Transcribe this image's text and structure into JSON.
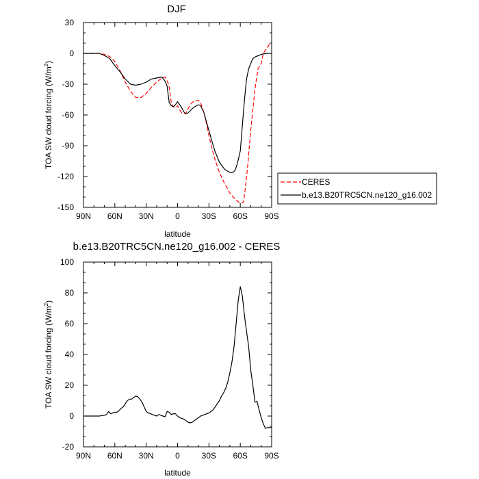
{
  "chart_data": [
    {
      "type": "line",
      "title": "DJF",
      "xlabel": "latitude",
      "ylabel": "TOA SW cloud forcing (W/m",
      "ylabel_sup": "2",
      "ylabel_close": ")",
      "xlim": [
        90,
        -90
      ],
      "ylim": [
        -150,
        30
      ],
      "xticks": [
        90,
        60,
        30,
        0,
        -30,
        -60,
        -90
      ],
      "xtick_labels": [
        "90N",
        "60N",
        "30N",
        "0",
        "30S",
        "60S",
        "90S"
      ],
      "yticks": [
        30,
        0,
        -30,
        -60,
        -90,
        -120,
        -150
      ],
      "ytick_labels": [
        "30",
        "0",
        "-30",
        "-60",
        "-90",
        "-120",
        "-150"
      ],
      "legend": {
        "placement": "right",
        "entries": [
          "CERES",
          "b.e13.B20TRC5CN.ne120_g16.002"
        ]
      },
      "series": [
        {
          "name": "CERES",
          "color": "#ff0000",
          "dash": true,
          "x": [
            90,
            80,
            75,
            70,
            65,
            60,
            55,
            50,
            45,
            40,
            35,
            30,
            25,
            20,
            15,
            12,
            10,
            8,
            6,
            4,
            2,
            0,
            -2,
            -4,
            -6,
            -8,
            -10,
            -12,
            -15,
            -18,
            -20,
            -22,
            -25,
            -28,
            -30,
            -33,
            -36,
            -40,
            -45,
            -50,
            -55,
            -60,
            -63,
            -65,
            -67,
            -70,
            -72,
            -74,
            -75,
            -77,
            -80,
            -82,
            -84,
            -86,
            -88,
            -90
          ],
          "y": [
            0,
            0,
            0,
            -1,
            -3,
            -8,
            -17,
            -28,
            -37,
            -43,
            -43,
            -39,
            -33,
            -28,
            -24,
            -23,
            -26,
            -33,
            -48,
            -52,
            -53,
            -51,
            -55,
            -58,
            -59,
            -58,
            -54,
            -50,
            -47,
            -46,
            -46,
            -48,
            -57,
            -70,
            -80,
            -93,
            -104,
            -116,
            -127,
            -136,
            -142,
            -146,
            -145,
            -130,
            -110,
            -75,
            -55,
            -35,
            -28,
            -15,
            -10,
            0,
            3,
            6,
            9,
            8
          ]
        },
        {
          "name": "b.e13.B20TRC5CN.ne120_g16.002",
          "color": "#000000",
          "dash": false,
          "x": [
            90,
            80,
            75,
            70,
            65,
            60,
            55,
            50,
            45,
            40,
            35,
            30,
            25,
            20,
            15,
            12,
            10,
            8,
            6,
            4,
            2,
            0,
            -2,
            -4,
            -6,
            -8,
            -10,
            -12,
            -15,
            -18,
            -20,
            -22,
            -25,
            -28,
            -30,
            -33,
            -36,
            -40,
            -45,
            -50,
            -53,
            -55,
            -57,
            -60,
            -62,
            -64,
            -66,
            -68,
            -70,
            -72,
            -75,
            -78,
            -80,
            -85,
            -90
          ],
          "y": [
            0,
            0,
            0,
            -2,
            -5,
            -12,
            -18,
            -25,
            -30,
            -31,
            -30,
            -28,
            -25,
            -24,
            -23,
            -27,
            -32,
            -48,
            -51,
            -52,
            -50,
            -47,
            -50,
            -53,
            -57,
            -59,
            -58,
            -56,
            -53,
            -51,
            -50,
            -51,
            -57,
            -68,
            -75,
            -86,
            -96,
            -106,
            -113,
            -116,
            -116,
            -114,
            -108,
            -95,
            -70,
            -45,
            -25,
            -15,
            -10,
            -5,
            -3,
            -2,
            -1,
            0,
            0
          ]
        }
      ]
    },
    {
      "type": "line",
      "title": "b.e13.B20TRC5CN.ne120_g16.002 - CERES",
      "xlabel": "latitude",
      "ylabel": "TOA SW cloud forcing (W/m",
      "ylabel_sup": "2",
      "ylabel_close": ")",
      "xlim": [
        90,
        -90
      ],
      "ylim": [
        -20,
        100
      ],
      "xticks": [
        90,
        60,
        30,
        0,
        -30,
        -60,
        -90
      ],
      "xtick_labels": [
        "90N",
        "60N",
        "30N",
        "0",
        "30S",
        "60S",
        "90S"
      ],
      "yticks": [
        100,
        80,
        60,
        40,
        20,
        0,
        -20
      ],
      "ytick_labels": [
        "100",
        "80",
        "60",
        "40",
        "20",
        "0",
        "-20"
      ],
      "series": [
        {
          "name": "b.e13.B20TRC5CN.ne120_g16.002 - CERES",
          "color": "#000000",
          "dash": false,
          "x": [
            90,
            80,
            75,
            72,
            70,
            68,
            66,
            64,
            62,
            60,
            58,
            56,
            54,
            52,
            50,
            48,
            46,
            44,
            42,
            40,
            38,
            36,
            34,
            32,
            30,
            28,
            26,
            24,
            22,
            20,
            18,
            16,
            14,
            12,
            10,
            8,
            6,
            4,
            2,
            0,
            -2,
            -4,
            -6,
            -8,
            -10,
            -12,
            -14,
            -16,
            -18,
            -20,
            -22,
            -24,
            -26,
            -28,
            -30,
            -32,
            -34,
            -36,
            -38,
            -40,
            -42,
            -44,
            -46,
            -48,
            -50,
            -52,
            -54,
            -56,
            -58,
            -60,
            -62,
            -64,
            -66,
            -68,
            -70,
            -72,
            -74,
            -76,
            -78,
            -80,
            -82,
            -84,
            -86,
            -88,
            -90
          ],
          "y": [
            0,
            0,
            0,
            0.3,
            0.5,
            1,
            3,
            1.5,
            2,
            2.5,
            2.5,
            3.5,
            5,
            6,
            8,
            10,
            11,
            11,
            12,
            13,
            12.5,
            11,
            9,
            6,
            3,
            2,
            1.5,
            1,
            0.5,
            0,
            1,
            0.5,
            0,
            -0.5,
            3,
            2.5,
            1,
            1.5,
            1.5,
            0,
            -1,
            -1.5,
            -2,
            -3,
            -4,
            -4.5,
            -4,
            -3,
            -2,
            -1,
            0,
            0.5,
            1,
            1.5,
            2,
            3,
            4,
            6,
            8,
            10,
            13,
            15,
            18,
            22,
            28,
            35,
            45,
            60,
            75,
            84,
            78,
            65,
            55,
            45,
            30,
            20,
            9,
            9.5,
            4,
            -1,
            -5,
            -8,
            -7.5,
            -7.5,
            -7.5
          ]
        }
      ]
    }
  ]
}
